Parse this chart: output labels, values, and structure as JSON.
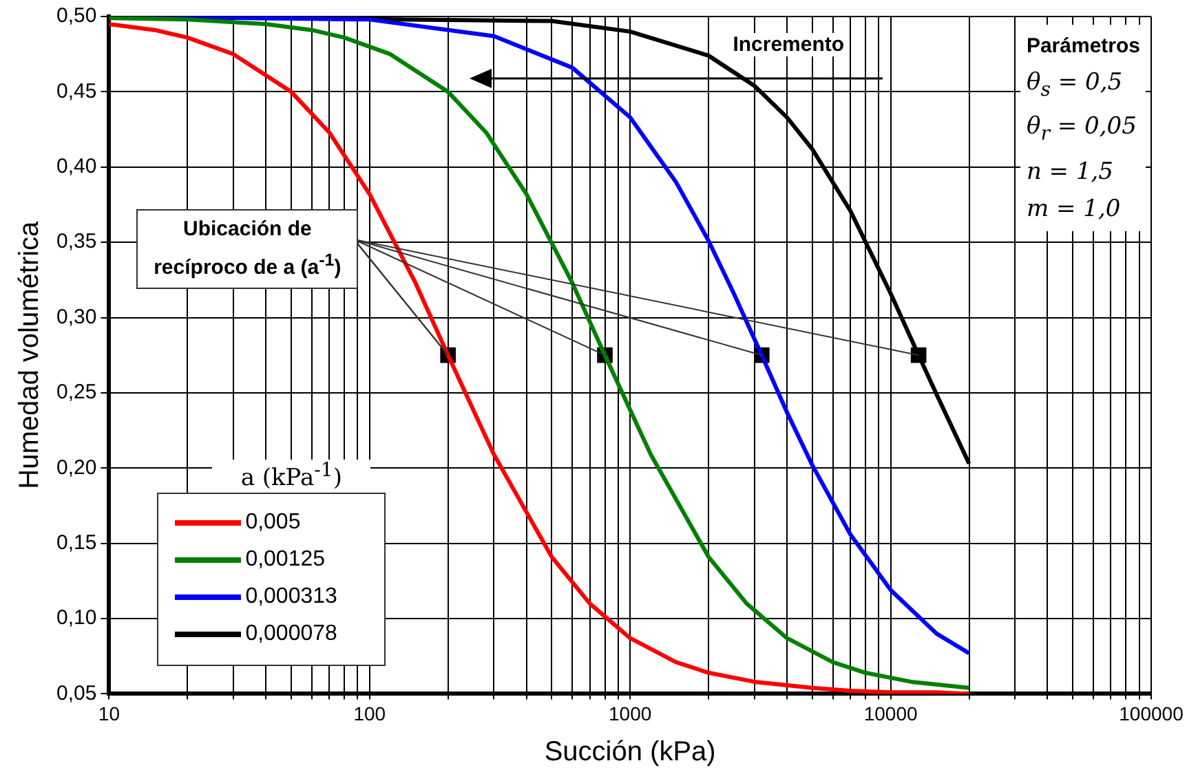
{
  "chart_data": {
    "type": "line",
    "xlabel": "Succión (kPa)",
    "ylabel": "Humedad volumétrica",
    "legend_title": "a (kPa$^{-1}$)",
    "legend": "bottom left",
    "grid": true,
    "log": "x",
    "line_style": "solid",
    "marker": "none",
    "xlim": [
      10,
      100000
    ],
    "ylim": [
      0.05,
      0.5
    ],
    "xticks": [
      10,
      {
        "value": 20,
        "label": null
      },
      {
        "value": 30,
        "label": null
      },
      {
        "value": 40,
        "label": null
      },
      {
        "value": 50,
        "label": null
      },
      {
        "value": 60,
        "label": null
      },
      {
        "value": 70,
        "label": null
      },
      {
        "value": 80,
        "label": null
      },
      {
        "value": 90,
        "label": null
      },
      100,
      {
        "value": 200,
        "label": null
      },
      {
        "value": 300,
        "label": null
      },
      {
        "value": 400,
        "label": null
      },
      {
        "value": 500,
        "label": null
      },
      {
        "value": 600,
        "label": null
      },
      {
        "value": 700,
        "label": null
      },
      {
        "value": 800,
        "label": null
      },
      {
        "value": 900,
        "label": null
      },
      1000,
      {
        "value": 2000,
        "label": null
      },
      {
        "value": 3000,
        "label": null
      },
      {
        "value": 4000,
        "label": null
      },
      {
        "value": 5000,
        "label": null
      },
      {
        "value": 6000,
        "label": null
      },
      {
        "value": 7000,
        "label": null
      },
      {
        "value": 8000,
        "label": null
      },
      {
        "value": 9000,
        "label": null
      },
      10000,
      {
        "value": 20000,
        "label": null
      },
      {
        "value": 30000,
        "label": null
      },
      {
        "value": 40000,
        "label": null
      },
      {
        "value": 50000,
        "label": null
      },
      {
        "value": 60000,
        "label": null
      },
      {
        "value": 70000,
        "label": null
      },
      {
        "value": 80000,
        "label": null
      },
      {
        "value": 90000,
        "label": null
      },
      100000
    ],
    "yticks": [
      {
        "value": 0.05,
        "label": "0,05"
      },
      {
        "value": 0.1,
        "label": "0,10"
      },
      {
        "value": 0.15,
        "label": "0,15"
      },
      {
        "value": 0.2,
        "label": "0,20"
      },
      {
        "value": 0.25,
        "label": "0,25"
      },
      {
        "value": 0.3,
        "label": "0,30"
      },
      {
        "value": 0.35,
        "label": "0,35"
      },
      {
        "value": 0.4,
        "label": "0,40"
      },
      {
        "value": 0.45,
        "label": "0,45"
      },
      {
        "value": 0.5,
        "label": "0,50"
      }
    ],
    "series": [
      {
        "name": "0,005",
        "color": "#ff0000",
        "x": [
          10,
          15,
          20,
          30,
          50,
          70,
          100,
          150,
          200,
          300,
          500,
          700,
          1000,
          1500,
          2000,
          3000,
          5000,
          7000,
          10000,
          15000,
          20000
        ],
        "values": [
          0.495,
          0.491,
          0.486,
          0.475,
          0.45,
          0.423,
          0.382,
          0.323,
          0.275,
          0.209,
          0.141,
          0.11,
          0.087,
          0.071,
          0.064,
          0.058,
          0.054,
          0.052,
          0.051,
          0.051,
          0.05
        ]
      },
      {
        "name": "0,00125",
        "color": "#008000",
        "x": [
          10,
          20,
          40,
          60,
          80,
          120,
          200,
          280,
          400,
          600,
          800,
          1200,
          2000,
          2800,
          4000,
          6000,
          8000,
          12000,
          20000
        ],
        "values": [
          0.499,
          0.498,
          0.495,
          0.491,
          0.486,
          0.475,
          0.45,
          0.423,
          0.382,
          0.323,
          0.275,
          0.209,
          0.141,
          0.11,
          0.087,
          0.071,
          0.064,
          0.058,
          0.054
        ]
      },
      {
        "name": "0,000313",
        "color": "#0000ff",
        "x": [
          10,
          100,
          300,
          600,
          1000,
          1500,
          2000,
          2500,
          3200,
          4000,
          5000,
          7000,
          10000,
          15000,
          20000
        ],
        "values": [
          0.5,
          0.498,
          0.487,
          0.466,
          0.433,
          0.39,
          0.351,
          0.316,
          0.275,
          0.237,
          0.202,
          0.156,
          0.119,
          0.09,
          0.077
        ]
      },
      {
        "name": "0,000078",
        "color": "#000000",
        "x": [
          10,
          500,
          1000,
          2000,
          3000,
          4000,
          5000,
          7000,
          10000,
          12800,
          15000,
          20000
        ],
        "values": [
          0.5,
          0.497,
          0.49,
          0.474,
          0.454,
          0.433,
          0.412,
          0.371,
          0.316,
          0.275,
          0.249,
          0.203
        ]
      },
      {
        "type": "scatter",
        "marker": "square",
        "color": "#000000",
        "x": [
          200,
          800,
          3200,
          12800
        ],
        "values": [
          0.275,
          0.275,
          0.275,
          0.275
        ]
      }
    ],
    "annotations": [
      "Incremento",
      "Parámetros",
      "θ$_{s}$ = 0,5",
      "θ$_{r}$ = 0,05",
      "n = 1,5",
      "m = 1,0",
      {
        "text": "Ubicación de recíproco de a (a$^{-1}$)",
        "x": 200,
        "y": 0.275
      }
    ]
  }
}
